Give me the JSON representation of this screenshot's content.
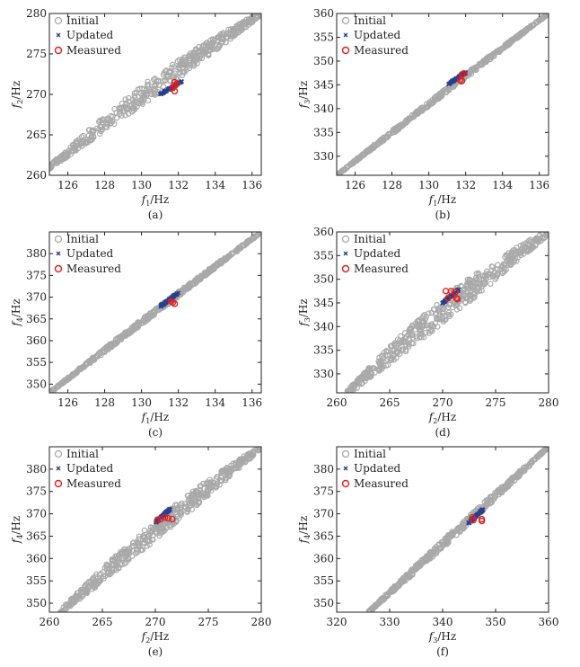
{
  "chart_data": [
    {
      "type": "scatter",
      "panel": "(a)",
      "xlabel": {
        "var": "f",
        "sub": "1",
        "unit": "/Hz"
      },
      "ylabel": {
        "var": "f",
        "sub": "2",
        "unit": "/Hz"
      },
      "xlim": [
        125,
        136.5
      ],
      "ylim": [
        260,
        280
      ],
      "xticks": [
        126,
        128,
        130,
        132,
        134,
        136
      ],
      "yticks": [
        260,
        265,
        270,
        275,
        280
      ],
      "initial": {
        "start": [
          125,
          261
        ],
        "end": [
          136.5,
          280
        ],
        "halfwidth": 1.2,
        "bulge": 0.6
      },
      "updated": {
        "start": [
          131,
          270
        ],
        "end": [
          132.2,
          271.6
        ]
      },
      "measured": [
        [
          131.8,
          271.5
        ],
        [
          131.8,
          271.1
        ],
        [
          131.7,
          270.8
        ],
        [
          131.8,
          270.4
        ],
        [
          131.9,
          271.3
        ]
      ]
    },
    {
      "type": "scatter",
      "panel": "(b)",
      "xlabel": {
        "var": "f",
        "sub": "1",
        "unit": "/Hz"
      },
      "ylabel": {
        "var": "f",
        "sub": "3",
        "unit": "/Hz"
      },
      "xlim": [
        125,
        136.5
      ],
      "ylim": [
        326,
        360
      ],
      "xticks": [
        126,
        128,
        130,
        132,
        134,
        136
      ],
      "yticks": [
        330,
        335,
        340,
        345,
        350,
        355,
        360
      ],
      "initial": {
        "start": [
          125,
          326
        ],
        "end": [
          136.5,
          360
        ],
        "halfwidth": 0.5,
        "bulge": 0.2
      },
      "updated": {
        "start": [
          131,
          345
        ],
        "end": [
          132,
          347.6
        ]
      },
      "measured": [
        [
          131.8,
          345.8
        ],
        [
          131.7,
          346
        ],
        [
          131.8,
          347.2
        ],
        [
          131.9,
          347.4
        ]
      ]
    },
    {
      "type": "scatter",
      "panel": "(c)",
      "xlabel": {
        "var": "f",
        "sub": "1",
        "unit": "/Hz"
      },
      "ylabel": {
        "var": "f",
        "sub": "4",
        "unit": "/Hz"
      },
      "xlim": [
        125,
        136.5
      ],
      "ylim": [
        348,
        385
      ],
      "xticks": [
        126,
        128,
        130,
        132,
        134,
        136
      ],
      "yticks": [
        350,
        355,
        360,
        365,
        370,
        375,
        380
      ],
      "initial": {
        "start": [
          125,
          348
        ],
        "end": [
          136.5,
          385
        ],
        "halfwidth": 0.6,
        "bulge": 0.2
      },
      "updated": {
        "start": [
          131,
          367.8
        ],
        "end": [
          132,
          371
        ]
      },
      "measured": [
        [
          131.7,
          368.8
        ],
        [
          131.8,
          368.5
        ],
        [
          131.6,
          369
        ]
      ]
    },
    {
      "type": "scatter",
      "panel": "(d)",
      "xlabel": {
        "var": "f",
        "sub": "2",
        "unit": "/Hz"
      },
      "ylabel": {
        "var": "f",
        "sub": "3",
        "unit": "/Hz"
      },
      "xlim": [
        260,
        280
      ],
      "ylim": [
        326,
        360
      ],
      "xticks": [
        260,
        265,
        270,
        275,
        280
      ],
      "yticks": [
        330,
        335,
        340,
        345,
        350,
        355,
        360
      ],
      "initial": {
        "start": [
          261,
          326
        ],
        "end": [
          280,
          360
        ],
        "halfwidth": 2.6,
        "bulge": 1.2
      },
      "updated": {
        "start": [
          270,
          345
        ],
        "end": [
          271.5,
          347.8
        ]
      },
      "measured": [
        [
          270.3,
          347.5
        ],
        [
          270.8,
          347.5
        ],
        [
          271.3,
          346
        ],
        [
          270.5,
          346
        ],
        [
          271.4,
          345.8
        ],
        [
          271.2,
          347.3
        ]
      ]
    },
    {
      "type": "scatter",
      "panel": "(e)",
      "xlabel": {
        "var": "f",
        "sub": "2",
        "unit": "/Hz"
      },
      "ylabel": {
        "var": "f",
        "sub": "4",
        "unit": "/Hz"
      },
      "xlim": [
        260,
        280
      ],
      "ylim": [
        348,
        385
      ],
      "xticks": [
        260,
        265,
        270,
        275,
        280
      ],
      "yticks": [
        350,
        355,
        360,
        365,
        370,
        375,
        380
      ],
      "initial": {
        "start": [
          261,
          348
        ],
        "end": [
          280,
          385
        ],
        "halfwidth": 2.2,
        "bulge": 0.8
      },
      "updated": {
        "start": [
          270,
          368
        ],
        "end": [
          271.5,
          371.3
        ]
      },
      "measured": [
        [
          270.5,
          368.8
        ],
        [
          271.2,
          369
        ],
        [
          271.6,
          368.8
        ],
        [
          270.2,
          368.7
        ],
        [
          270.9,
          369.2
        ]
      ]
    },
    {
      "type": "scatter",
      "panel": "(f)",
      "xlabel": {
        "var": "f",
        "sub": "3",
        "unit": "/Hz"
      },
      "ylabel": {
        "var": "f",
        "sub": "4",
        "unit": "/Hz"
      },
      "xlim": [
        320,
        360
      ],
      "ylim": [
        348,
        385
      ],
      "xticks": [
        320,
        330,
        340,
        350,
        360
      ],
      "yticks": [
        350,
        355,
        360,
        365,
        370,
        375,
        380
      ],
      "initial": {
        "start": [
          326,
          348
        ],
        "end": [
          360,
          385
        ],
        "halfwidth": 0.9,
        "bulge": 0
      },
      "updated": {
        "start": [
          344.8,
          367.8
        ],
        "end": [
          347.8,
          371.2
        ]
      },
      "measured": [
        [
          345.6,
          369.2
        ],
        [
          345.8,
          368.6
        ],
        [
          347.4,
          368.8
        ],
        [
          347.4,
          368.4
        ]
      ]
    }
  ],
  "legend": {
    "initial": "Initial",
    "updated": "Updated",
    "measured": "Measured",
    "placement": "top-left"
  },
  "colors": {
    "initial": "#a9a9a9",
    "updated": "#2a3f8f",
    "measured": "#e02020"
  }
}
